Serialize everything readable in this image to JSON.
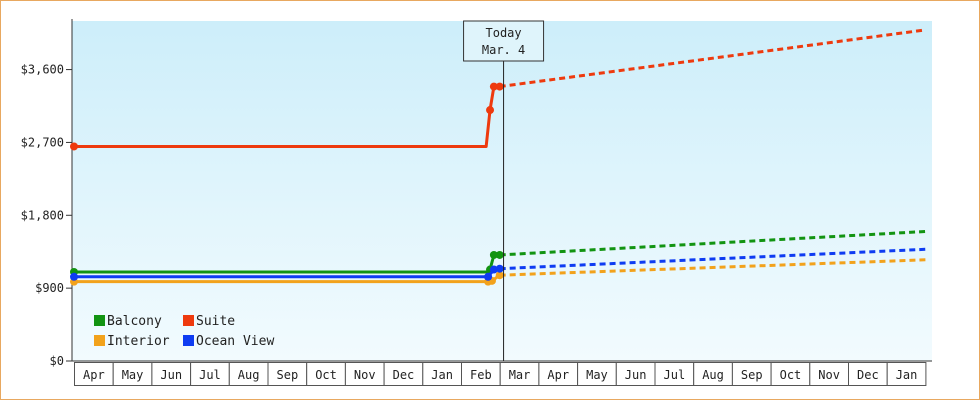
{
  "chart_data": {
    "type": "line",
    "ylim": [
      0,
      4200
    ],
    "y_ticks": [
      0,
      900,
      1800,
      2700,
      3600
    ],
    "y_tick_labels": [
      "$0",
      "$900",
      "$1,800",
      "$2,700",
      "$3,600"
    ],
    "months": [
      "Apr",
      "May",
      "Jun",
      "Jul",
      "Aug",
      "Sep",
      "Oct",
      "Nov",
      "Dec",
      "Jan",
      "Feb",
      "Mar",
      "Apr",
      "May",
      "Jun",
      "Jul",
      "Aug",
      "Sep",
      "Oct",
      "Nov",
      "Dec",
      "Jan"
    ],
    "today": {
      "line1": "Today",
      "line2": "Mar. 4",
      "month_index": 11.1
    },
    "legend_position": "bottom-left",
    "series": [
      {
        "name": "Balcony",
        "color": "#129412",
        "history": [
          [
            0,
            1100
          ],
          [
            10.7,
            1100
          ],
          [
            10.75,
            1130
          ],
          [
            10.85,
            1310
          ],
          [
            11.0,
            1310
          ]
        ],
        "forecast": [
          [
            11.0,
            1310
          ],
          [
            22.0,
            1600
          ]
        ]
      },
      {
        "name": "Suite",
        "color": "#ee3a0e",
        "history": [
          [
            0,
            2650
          ],
          [
            10.65,
            2650
          ],
          [
            10.75,
            3100
          ],
          [
            10.85,
            3390
          ],
          [
            11.0,
            3390
          ]
        ],
        "forecast": [
          [
            11.0,
            3390
          ],
          [
            22.0,
            4090
          ]
        ]
      },
      {
        "name": "Interior",
        "color": "#f2a21c",
        "history": [
          [
            0,
            980
          ],
          [
            10.7,
            980
          ],
          [
            10.8,
            990
          ],
          [
            11.0,
            1060
          ]
        ],
        "forecast": [
          [
            11.0,
            1060
          ],
          [
            22.0,
            1250
          ]
        ]
      },
      {
        "name": "Ocean View",
        "color": "#0e3cf2",
        "history": [
          [
            0,
            1040
          ],
          [
            10.7,
            1040
          ],
          [
            10.85,
            1130
          ],
          [
            11.0,
            1140
          ]
        ],
        "forecast": [
          [
            11.0,
            1140
          ],
          [
            22.0,
            1380
          ]
        ]
      }
    ]
  }
}
